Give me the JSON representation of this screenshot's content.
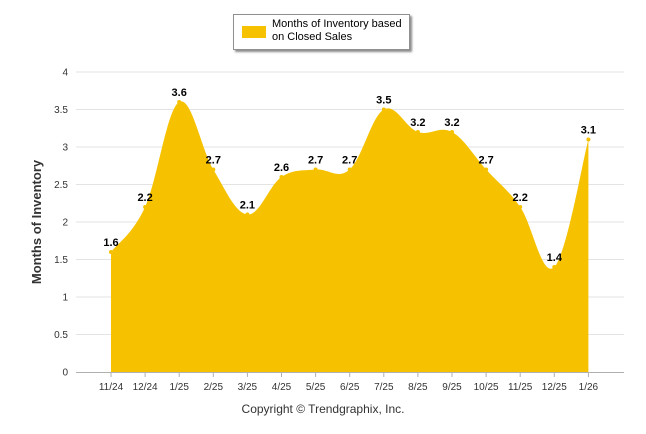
{
  "chart_data": {
    "type": "area",
    "categories": [
      "11/24",
      "12/24",
      "1/25",
      "2/25",
      "3/25",
      "4/25",
      "5/25",
      "6/25",
      "7/25",
      "8/25",
      "9/25",
      "10/25",
      "11/25",
      "12/25",
      "1/26"
    ],
    "values": [
      1.6,
      2.2,
      3.6,
      2.7,
      2.1,
      2.6,
      2.7,
      2.7,
      3.5,
      3.2,
      3.2,
      2.7,
      2.2,
      1.4,
      3.1
    ],
    "data_labels": [
      "1.6",
      "2.2",
      "3.6",
      "2.7",
      "2.1",
      "2.6",
      "2.7",
      "2.7",
      "3.5",
      "3.2",
      "3.2",
      "2.7",
      "2.2",
      "1.4",
      "3.1"
    ],
    "series_name": "Months of Inventory based on Closed Sales",
    "ylabel": "Months of Inventory",
    "xlabel": "",
    "ylim": [
      0,
      4
    ],
    "yticks": [
      "0",
      "0.5",
      "1",
      "1.5",
      "2",
      "2.5",
      "3",
      "3.5",
      "4"
    ],
    "grid": true,
    "legend_position": "top-center"
  },
  "legend": {
    "label": "Months of Inventory based on Closed Sales"
  },
  "footer": {
    "copyright": "Copyright © Trendgraphix, Inc."
  },
  "colors": {
    "fill": "#f6c200",
    "grid": "#e3e3e3",
    "axis": "#b0b0b0",
    "tick_text": "#333333",
    "label_text": "#000000"
  }
}
